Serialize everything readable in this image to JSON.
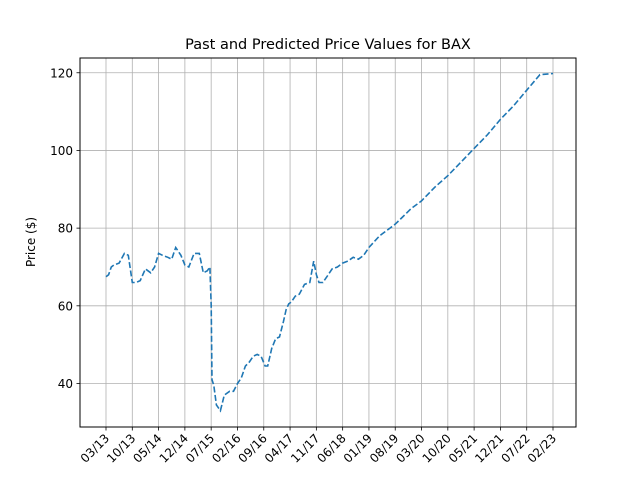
{
  "chart_data": {
    "type": "line",
    "title": "Past and Predicted Price Values for BAX",
    "xlabel": "",
    "ylabel": "Price ($)",
    "grid": true,
    "legend": "none",
    "ylim": [
      28.8,
      123.8
    ],
    "yticks": [
      40,
      60,
      80,
      100,
      120
    ],
    "xticks": [
      "03/13",
      "10/13",
      "05/14",
      "12/14",
      "07/15",
      "02/16",
      "09/16",
      "04/17",
      "11/17",
      "06/18",
      "01/19",
      "08/19",
      "03/20",
      "10/20",
      "05/21",
      "12/21",
      "07/22",
      "02/23"
    ],
    "line_color": "#1f77b4",
    "line_style": "dashed",
    "series": [
      {
        "x": [
          0,
          0.1,
          0.2,
          0.3,
          0.5,
          0.7,
          0.85,
          1.0,
          1.15,
          1.3,
          1.5,
          1.7,
          1.85,
          2.0,
          2.15,
          2.35,
          2.5,
          2.65,
          2.85,
          3.0,
          3.15,
          3.35,
          3.55,
          3.7,
          3.85,
          3.95,
          4.0,
          4.03,
          4.1,
          4.2,
          4.35,
          4.5,
          4.7,
          4.85,
          5.0,
          5.15,
          5.3,
          5.45,
          5.6,
          5.75,
          5.9,
          6.05,
          6.15,
          6.3,
          6.45,
          6.6,
          6.75,
          6.85,
          6.95,
          7.05,
          7.2,
          7.35,
          7.55,
          7.75,
          7.9,
          8.0,
          8.1,
          8.25,
          8.4,
          8.6,
          8.8,
          9.0,
          9.2,
          9.4,
          9.6,
          9.8,
          10.0,
          10.2,
          10.4,
          10.6,
          10.8,
          11.0,
          11.3,
          11.6,
          12.0,
          12.5,
          13.0,
          13.5,
          14.0,
          14.5,
          15.0,
          15.5,
          16.0,
          16.5,
          17.0
        ],
        "y": [
          67.5,
          68.0,
          70.0,
          70.5,
          71.0,
          73.5,
          73.0,
          66.0,
          66.0,
          66.5,
          69.5,
          68.5,
          70.0,
          73.5,
          73.0,
          72.5,
          72.0,
          75.0,
          73.0,
          70.5,
          70.0,
          73.5,
          73.5,
          68.5,
          69.0,
          70.0,
          60.0,
          41.0,
          39.5,
          34.5,
          33.0,
          37.0,
          38.0,
          38.0,
          40.0,
          41.5,
          44.5,
          45.5,
          47.0,
          47.5,
          47.0,
          44.5,
          44.5,
          49.0,
          51.5,
          52.0,
          56.0,
          59.0,
          60.5,
          61.0,
          62.5,
          63.0,
          65.5,
          66.0,
          71.5,
          68.0,
          66.0,
          66.0,
          67.5,
          69.5,
          70.0,
          71.0,
          71.5,
          72.5,
          72.0,
          73.0,
          75.0,
          76.5,
          78.0,
          79.0,
          80.0,
          81.0,
          83.0,
          85.0,
          87.0,
          90.5,
          93.5,
          97.0,
          100.5,
          104.0,
          108.0,
          111.5,
          115.5,
          119.5,
          119.8
        ]
      }
    ]
  }
}
